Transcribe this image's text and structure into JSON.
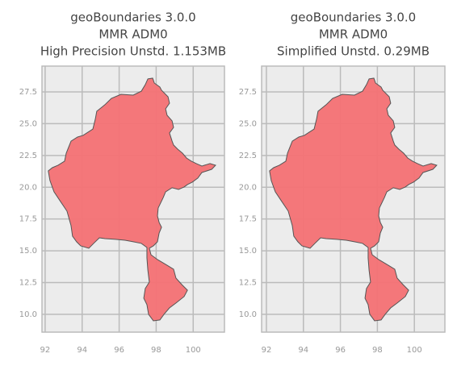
{
  "chart_data": [
    {
      "type": "map",
      "title": [
        "geoBoundaries 3.0.0",
        "MMR ADM0",
        "High Precision Unstd. 1.153MB"
      ],
      "xlim": [
        91.83,
        101.69
      ],
      "ylim": [
        8.6,
        29.53
      ],
      "xticks": [
        92,
        94,
        96,
        98,
        100
      ],
      "yticks": [
        {
          "value": 10,
          "label": "10.0"
        },
        12.5,
        {
          "value": 15,
          "label": "15.0"
        },
        17.5,
        {
          "value": 20,
          "label": "20.0"
        },
        22.5,
        {
          "value": 25,
          "label": "25.0"
        },
        27.5
      ],
      "grid": true,
      "color": "#f47174",
      "edgecolor": "#555555",
      "lon": [
        97.55,
        97.81,
        97.9,
        98.2,
        98.29,
        98.64,
        98.72,
        98.51,
        98.59,
        98.86,
        98.94,
        98.72,
        98.86,
        98.94,
        99.16,
        99.42,
        99.64,
        99.9,
        100.17,
        100.47,
        100.91,
        101.21,
        101.0,
        100.47,
        100.25,
        99.95,
        99.69,
        99.51,
        99.21,
        98.86,
        98.51,
        98.38,
        98.11,
        98.07,
        98.16,
        98.29,
        98.16,
        98.07,
        97.85,
        97.63,
        97.72,
        98.07,
        98.51,
        98.94,
        99.07,
        99.38,
        99.69,
        99.51,
        99.07,
        98.72,
        98.42,
        98.2,
        97.85,
        97.59,
        97.5,
        97.33,
        97.41,
        97.63,
        97.55,
        97.5,
        97.5,
        97.2,
        96.76,
        96.32,
        95.8,
        95.23,
        94.93,
        94.62,
        94.36,
        93.92,
        93.7,
        93.48,
        93.4,
        93.18,
        92.83,
        92.48,
        92.26,
        92.17,
        92.39,
        92.7,
        93.05,
        93.14,
        93.4,
        93.75,
        94.05,
        94.58,
        94.71,
        94.79,
        95.23,
        95.58,
        96.1,
        96.76,
        97.2,
        97.41
      ],
      "lat": [
        28.52,
        28.58,
        28.2,
        27.88,
        27.63,
        27.12,
        26.61,
        26.17,
        25.66,
        25.22,
        24.71,
        24.27,
        23.63,
        23.32,
        23.0,
        22.68,
        22.3,
        22.05,
        21.86,
        21.67,
        21.86,
        21.73,
        21.41,
        21.16,
        20.72,
        20.4,
        20.21,
        20.02,
        19.83,
        19.96,
        19.64,
        19.19,
        18.37,
        17.74,
        17.23,
        16.85,
        16.4,
        15.71,
        15.39,
        15.2,
        14.69,
        14.31,
        13.93,
        13.55,
        12.85,
        12.35,
        11.9,
        11.4,
        10.89,
        10.51,
        10.0,
        9.56,
        9.49,
        10.0,
        10.76,
        11.27,
        12.03,
        12.54,
        13.49,
        14.44,
        15.26,
        15.58,
        15.71,
        15.83,
        15.9,
        15.96,
        16.02,
        15.58,
        15.2,
        15.39,
        15.71,
        16.15,
        16.98,
        18.12,
        18.88,
        19.64,
        20.53,
        21.29,
        21.54,
        21.73,
        22.05,
        22.68,
        23.63,
        23.95,
        24.08,
        24.58,
        25.35,
        25.98,
        26.49,
        26.99,
        27.31,
        27.25,
        27.56,
        28.07
      ]
    },
    {
      "type": "map",
      "title": [
        "geoBoundaries 3.0.0",
        "MMR ADM0",
        "Simplified Unstd. 0.29MB"
      ],
      "xlim": [
        91.74,
        101.65
      ],
      "ylim": [
        8.6,
        29.53
      ],
      "xticks": [
        92,
        94,
        96,
        98,
        100
      ],
      "yticks": [
        {
          "value": 10,
          "label": "10.0"
        },
        12.5,
        {
          "value": 15,
          "label": "15.0"
        },
        17.5,
        {
          "value": 20,
          "label": "20.0"
        },
        22.5,
        {
          "value": 25,
          "label": "25.0"
        },
        27.5
      ],
      "grid": true,
      "color": "#f47174",
      "edgecolor": "#555555",
      "lon": [
        97.55,
        97.81,
        97.9,
        98.2,
        98.29,
        98.64,
        98.72,
        98.51,
        98.59,
        98.86,
        98.94,
        98.72,
        98.86,
        98.94,
        99.16,
        99.42,
        99.64,
        99.9,
        100.17,
        100.47,
        100.91,
        101.21,
        101.0,
        100.47,
        100.25,
        99.95,
        99.69,
        99.51,
        99.21,
        98.86,
        98.51,
        98.38,
        98.11,
        98.07,
        98.16,
        98.29,
        98.16,
        98.07,
        97.85,
        97.63,
        97.72,
        98.07,
        98.51,
        98.94,
        99.07,
        99.38,
        99.69,
        99.51,
        99.07,
        98.72,
        98.42,
        98.2,
        97.85,
        97.59,
        97.5,
        97.33,
        97.41,
        97.63,
        97.55,
        97.5,
        97.5,
        97.2,
        96.76,
        96.32,
        95.8,
        95.23,
        94.93,
        94.62,
        94.36,
        93.92,
        93.7,
        93.48,
        93.4,
        93.18,
        92.83,
        92.48,
        92.26,
        92.17,
        92.39,
        92.7,
        93.05,
        93.14,
        93.4,
        93.75,
        94.05,
        94.58,
        94.71,
        94.79,
        95.23,
        95.58,
        96.1,
        96.76,
        97.2,
        97.41
      ],
      "lat": [
        28.52,
        28.58,
        28.2,
        27.88,
        27.63,
        27.12,
        26.61,
        26.17,
        25.66,
        25.22,
        24.71,
        24.27,
        23.63,
        23.32,
        23.0,
        22.68,
        22.3,
        22.05,
        21.86,
        21.67,
        21.86,
        21.73,
        21.41,
        21.16,
        20.72,
        20.4,
        20.21,
        20.02,
        19.83,
        19.96,
        19.64,
        19.19,
        18.37,
        17.74,
        17.23,
        16.85,
        16.4,
        15.71,
        15.39,
        15.2,
        14.69,
        14.31,
        13.93,
        13.55,
        12.85,
        12.35,
        11.9,
        11.4,
        10.89,
        10.51,
        10.0,
        9.56,
        9.49,
        10.0,
        10.76,
        11.27,
        12.03,
        12.54,
        13.49,
        14.44,
        15.26,
        15.58,
        15.71,
        15.83,
        15.9,
        15.96,
        16.02,
        15.58,
        15.2,
        15.39,
        15.71,
        16.15,
        16.98,
        18.12,
        18.88,
        19.64,
        20.53,
        21.29,
        21.54,
        21.73,
        22.05,
        22.68,
        23.63,
        23.95,
        24.08,
        24.58,
        25.35,
        25.98,
        26.49,
        26.99,
        27.31,
        27.25,
        27.56,
        28.07
      ]
    }
  ]
}
